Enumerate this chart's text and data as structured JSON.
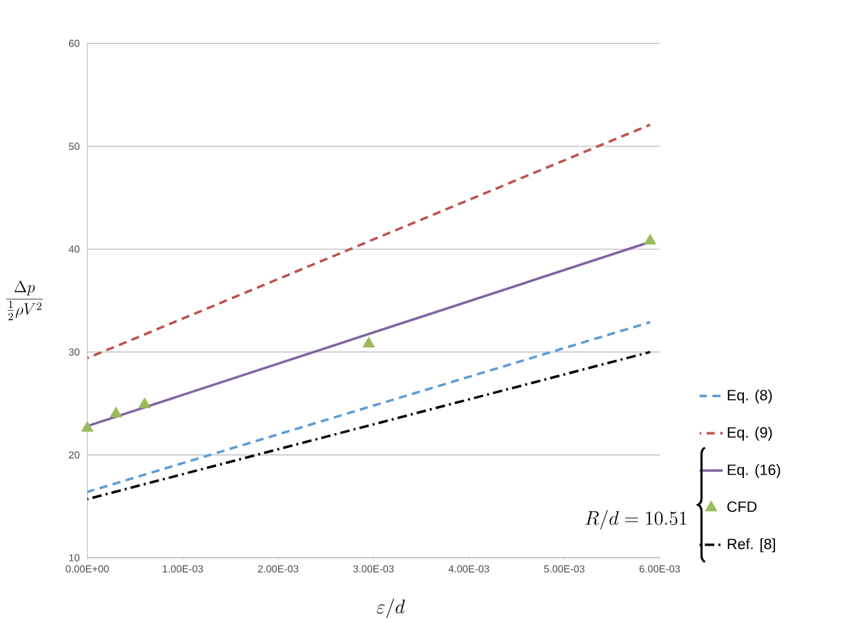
{
  "chart_data": {
    "type": "line",
    "xlabel": "\\varepsilon / d",
    "ylabel": "\\frac{\\Delta p}{\\frac{1}{2}\\rho V^2}",
    "xlim": [
      0,
      0.006
    ],
    "ylim": [
      10,
      60
    ],
    "xticks": [
      {
        "value": 0,
        "label": "0.00E+00"
      },
      {
        "value": 0.001,
        "label": "1.00E-03"
      },
      {
        "value": 0.002,
        "label": "2.00E-03"
      },
      {
        "value": 0.003,
        "label": "3.00E-03"
      },
      {
        "value": 0.004,
        "label": "4.00E-03"
      },
      {
        "value": 0.005,
        "label": "5.00E-03"
      },
      {
        "value": 0.006,
        "label": "6.00E-03"
      }
    ],
    "yticks": [
      10,
      20,
      30,
      40,
      50,
      60
    ],
    "grid": "y",
    "legend": "right",
    "series": [
      {
        "name": "Eq. (8)",
        "color": "#5b9bd5",
        "line_style": "dashed",
        "x": [
          0,
          0.0059
        ],
        "values": [
          16.4,
          32.9
        ]
      },
      {
        "name": "Eq. (9)",
        "color": "#c0504d",
        "line_style": "dashed",
        "x": [
          0,
          0.0059
        ],
        "values": [
          29.4,
          52.1
        ]
      },
      {
        "name": "Eq. (16)",
        "color": "#8064a2",
        "line_style": "solid",
        "x": [
          0,
          0.0059
        ],
        "values": [
          22.8,
          40.7
        ]
      },
      {
        "name": "CFD",
        "type": "scatter",
        "marker": "triangle",
        "color": "#9bbb59",
        "x": [
          0,
          0.0003,
          0.0006,
          0.00295,
          0.0059
        ],
        "values": [
          22.6,
          24.0,
          24.9,
          30.8,
          40.8
        ]
      },
      {
        "name": "Ref. [8]",
        "color": "#000000",
        "line_style": "dashdot",
        "x": [
          0,
          0.0059
        ],
        "values": [
          15.7,
          30.0
        ]
      }
    ],
    "annotations": [
      "R/d=10.51"
    ]
  }
}
